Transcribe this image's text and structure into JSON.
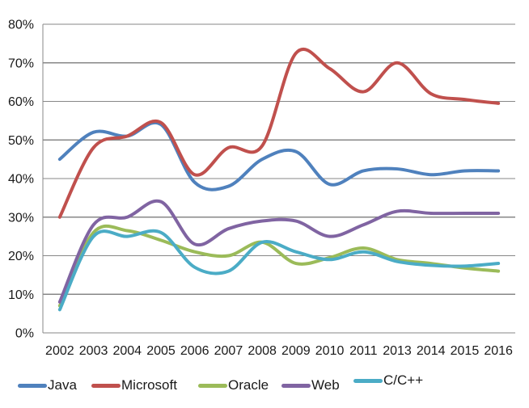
{
  "chart_data": {
    "type": "line",
    "smoothed": true,
    "title": "",
    "xlabel": "",
    "ylabel": "",
    "categories": [
      "2002",
      "2003",
      "2004",
      "2005",
      "2006",
      "2007",
      "2008",
      "2009",
      "2010",
      "2011",
      "2013",
      "2014",
      "2015",
      "2016"
    ],
    "series": [
      {
        "name": "Java",
        "color": "#4F81BD",
        "values": [
          45,
          52,
          51,
          54,
          39,
          38,
          45,
          47,
          38.5,
          42,
          42.5,
          41,
          42,
          42
        ]
      },
      {
        "name": "Microsoft",
        "color": "#C0504D",
        "values": [
          30,
          48,
          51,
          54.5,
          41,
          48,
          48.5,
          72.5,
          68.5,
          62.5,
          70,
          62,
          60.5,
          59.5
        ]
      },
      {
        "name": "Oracle",
        "color": "#9BBB59",
        "values": [
          7,
          26,
          26.5,
          24,
          21,
          20,
          23.5,
          18,
          19.5,
          22,
          19,
          18,
          16.8,
          16
        ]
      },
      {
        "name": "Web",
        "color": "#8064A2",
        "values": [
          8,
          28,
          30,
          34,
          23,
          27,
          29,
          29,
          25,
          28,
          31.5,
          31,
          31,
          31
        ]
      },
      {
        "name": "C/C++",
        "color": "#4BACC6",
        "values": [
          6,
          25,
          25,
          26,
          17,
          16,
          23.5,
          21,
          19,
          21,
          18.5,
          17.5,
          17.3,
          18
        ]
      }
    ],
    "ylim": [
      0,
      80
    ],
    "ytick_step": 10,
    "ytick_labels": [
      "0%",
      "10%",
      "20%",
      "30%",
      "40%",
      "50%",
      "60%",
      "70%",
      "80%"
    ],
    "grid": true,
    "legend_position": "bottom",
    "legend_labels": [
      "Java",
      "Microsoft",
      "Oracle",
      "Web",
      "C/C++"
    ]
  },
  "colors": {
    "gridline": "#878787",
    "axis_line": "#878787",
    "axis_text": "#1a1a1a",
    "background": "#ffffff"
  }
}
